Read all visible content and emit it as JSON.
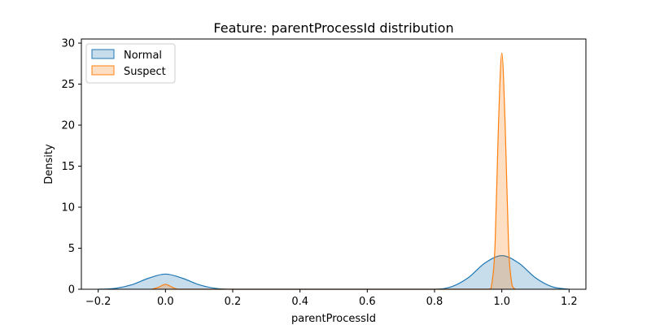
{
  "chart_data": {
    "type": "area",
    "title": "Feature: parentProcessId distribution",
    "xlabel": "parentProcessId",
    "ylabel": "Density",
    "xlim": [
      -0.25,
      1.25
    ],
    "ylim": [
      0,
      30.5
    ],
    "xticks": [
      -0.2,
      0.0,
      0.2,
      0.4,
      0.6,
      0.8,
      1.0,
      1.2
    ],
    "xtick_labels": [
      "−0.2",
      "0.0",
      "0.2",
      "0.4",
      "0.6",
      "0.8",
      "1.0",
      "1.2"
    ],
    "yticks": [
      0,
      5,
      10,
      15,
      20,
      25,
      30
    ],
    "ytick_labels": [
      "0",
      "5",
      "10",
      "15",
      "20",
      "25",
      "30"
    ],
    "grid": false,
    "legend_position": "top-left",
    "series": [
      {
        "name": "Normal",
        "color": "#1f77b4",
        "x": [
          -0.2,
          -0.15,
          -0.1,
          -0.05,
          0.0,
          0.05,
          0.1,
          0.15,
          0.2,
          0.3,
          0.4,
          0.5,
          0.6,
          0.7,
          0.8,
          0.85,
          0.9,
          0.95,
          1.0,
          1.05,
          1.1,
          1.15,
          1.2
        ],
        "y": [
          0.0,
          0.1,
          0.55,
          1.35,
          1.85,
          1.35,
          0.55,
          0.1,
          0.0,
          0.0,
          0.0,
          0.0,
          0.0,
          0.0,
          0.0,
          0.3,
          1.4,
          3.2,
          4.1,
          3.2,
          1.4,
          0.3,
          0.0
        ]
      },
      {
        "name": "Suspect",
        "color": "#ff7f0e",
        "x": [
          -0.04,
          -0.02,
          0.0,
          0.02,
          0.04,
          0.1,
          0.5,
          0.9,
          0.96,
          0.97,
          0.98,
          0.99,
          1.0,
          1.01,
          1.02,
          1.03,
          1.04
        ],
        "y": [
          0.0,
          0.25,
          0.6,
          0.25,
          0.0,
          0.0,
          0.0,
          0.0,
          0.0,
          0.6,
          5.5,
          20.0,
          28.8,
          20.0,
          5.5,
          0.6,
          0.0
        ]
      }
    ]
  }
}
